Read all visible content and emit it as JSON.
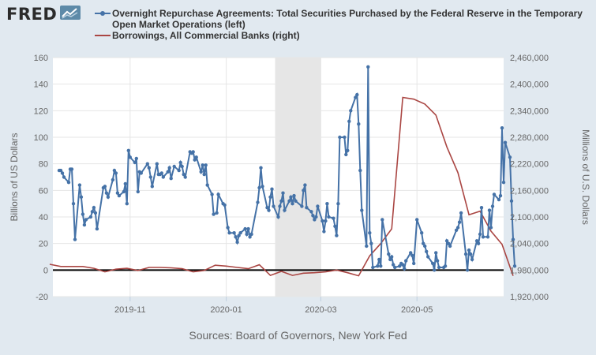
{
  "logo_text": "FRED",
  "logo_icon": "line-chart-icon",
  "source": "Sources: Board of Governors, New York Fed",
  "colors": {
    "background": "#e1e9f0",
    "plot_background": "#ffffff",
    "recession_band": "#e6e6e6",
    "series_left": "#4572a7",
    "series_right": "#aa4643"
  },
  "chart_data": {
    "type": "line",
    "x_type": "date",
    "xlim": [
      "2019-09-13",
      "2020-06-25"
    ],
    "x_ticks": [
      "2019-11",
      "2020-01",
      "2020-03",
      "2020-05"
    ],
    "ylabel_left": "Billions of US Dollars",
    "ylabel_right": "Millions of U.S. Dollars",
    "ylim_left": [
      -20,
      160
    ],
    "yticks_left": [
      "-20",
      "0",
      "20",
      "40",
      "60",
      "80",
      "100",
      "120",
      "140",
      "160"
    ],
    "ylim_right": [
      1920000,
      2460000
    ],
    "yticks_right": [
      "1,920,000",
      "1,980,000",
      "2,040,000",
      "2,100,000",
      "2,160,000",
      "2,220,000",
      "2,280,000",
      "2,340,000",
      "2,400,000",
      "2,460,000"
    ],
    "grid": true,
    "legend_position": "top",
    "shaded_period": [
      "2020-02-01",
      "2020-03-01"
    ],
    "series": [
      {
        "name": "Overnight Repurchase Agreements: Total Securities Purchased by the Federal Reserve in the Temporary Open Market Operations (left)",
        "axis": "left",
        "marker": "circle",
        "color": "#4572a7",
        "points": [
          [
            "2019-09-17",
            75
          ],
          [
            "2019-09-18",
            75
          ],
          [
            "2019-09-19",
            73
          ],
          [
            "2019-09-20",
            70
          ],
          [
            "2019-09-23",
            66
          ],
          [
            "2019-09-24",
            76
          ],
          [
            "2019-09-25",
            76
          ],
          [
            "2019-09-26",
            50
          ],
          [
            "2019-09-27",
            23
          ],
          [
            "2019-09-30",
            64
          ],
          [
            "2019-10-01",
            55
          ],
          [
            "2019-10-02",
            42
          ],
          [
            "2019-10-03",
            34
          ],
          [
            "2019-10-04",
            38
          ],
          [
            "2019-10-07",
            40
          ],
          [
            "2019-10-08",
            44
          ],
          [
            "2019-10-09",
            47
          ],
          [
            "2019-10-10",
            43
          ],
          [
            "2019-10-11",
            31
          ],
          [
            "2019-10-15",
            62
          ],
          [
            "2019-10-16",
            63
          ],
          [
            "2019-10-17",
            58
          ],
          [
            "2019-10-18",
            55
          ],
          [
            "2019-10-21",
            68
          ],
          [
            "2019-10-22",
            75
          ],
          [
            "2019-10-23",
            73
          ],
          [
            "2019-10-24",
            58
          ],
          [
            "2019-10-25",
            56
          ],
          [
            "2019-10-28",
            59
          ],
          [
            "2019-10-29",
            65
          ],
          [
            "2019-10-30",
            50
          ],
          [
            "2019-10-31",
            90
          ],
          [
            "2019-11-01",
            85
          ],
          [
            "2019-11-04",
            81
          ],
          [
            "2019-11-05",
            84
          ],
          [
            "2019-11-06",
            59
          ],
          [
            "2019-11-07",
            74
          ],
          [
            "2019-11-08",
            73
          ],
          [
            "2019-11-12",
            80
          ],
          [
            "2019-11-13",
            77
          ],
          [
            "2019-11-14",
            70
          ],
          [
            "2019-11-15",
            63
          ],
          [
            "2019-11-18",
            80
          ],
          [
            "2019-11-19",
            72
          ],
          [
            "2019-11-20",
            72
          ],
          [
            "2019-11-21",
            73
          ],
          [
            "2019-11-22",
            70
          ],
          [
            "2019-11-25",
            74
          ],
          [
            "2019-11-26",
            77
          ],
          [
            "2019-11-27",
            69
          ],
          [
            "2019-11-29",
            78
          ],
          [
            "2019-12-02",
            75
          ],
          [
            "2019-12-03",
            81
          ],
          [
            "2019-12-04",
            78
          ],
          [
            "2019-12-05",
            72
          ],
          [
            "2019-12-06",
            70
          ],
          [
            "2019-12-09",
            89
          ],
          [
            "2019-12-10",
            88
          ],
          [
            "2019-12-11",
            89
          ],
          [
            "2019-12-12",
            83
          ],
          [
            "2019-12-13",
            85
          ],
          [
            "2019-12-16",
            74
          ],
          [
            "2019-12-17",
            79
          ],
          [
            "2019-12-18",
            72
          ],
          [
            "2019-12-19",
            79
          ],
          [
            "2019-12-20",
            64
          ],
          [
            "2019-12-23",
            57
          ],
          [
            "2019-12-24",
            42
          ],
          [
            "2019-12-26",
            43
          ],
          [
            "2019-12-27",
            57
          ],
          [
            "2019-12-30",
            50
          ],
          [
            "2019-12-31",
            49
          ],
          [
            "2020-01-02",
            32
          ],
          [
            "2020-01-03",
            28
          ],
          [
            "2020-01-06",
            28
          ],
          [
            "2020-01-07",
            25
          ],
          [
            "2020-01-08",
            21
          ],
          [
            "2020-01-09",
            26
          ],
          [
            "2020-01-10",
            28
          ],
          [
            "2020-01-13",
            31
          ],
          [
            "2020-01-14",
            27
          ],
          [
            "2020-01-15",
            31
          ],
          [
            "2020-01-16",
            25
          ],
          [
            "2020-01-17",
            27
          ],
          [
            "2020-01-21",
            51
          ],
          [
            "2020-01-22",
            62
          ],
          [
            "2020-01-23",
            77
          ],
          [
            "2020-01-24",
            63
          ],
          [
            "2020-01-27",
            47
          ],
          [
            "2020-01-28",
            45
          ],
          [
            "2020-01-29",
            55
          ],
          [
            "2020-01-30",
            61
          ],
          [
            "2020-01-31",
            48
          ],
          [
            "2020-02-03",
            40
          ],
          [
            "2020-02-04",
            48
          ],
          [
            "2020-02-05",
            52
          ],
          [
            "2020-02-06",
            58
          ],
          [
            "2020-02-07",
            45
          ],
          [
            "2020-02-10",
            52
          ],
          [
            "2020-02-11",
            55
          ],
          [
            "2020-02-12",
            50
          ],
          [
            "2020-02-13",
            56
          ],
          [
            "2020-02-14",
            52
          ],
          [
            "2020-02-18",
            48
          ],
          [
            "2020-02-19",
            60
          ],
          [
            "2020-02-20",
            64
          ],
          [
            "2020-02-21",
            47
          ],
          [
            "2020-02-24",
            44
          ],
          [
            "2020-02-25",
            41
          ],
          [
            "2020-02-26",
            38
          ],
          [
            "2020-02-27",
            40
          ],
          [
            "2020-02-28",
            48
          ],
          [
            "2020-03-02",
            37
          ],
          [
            "2020-03-03",
            29
          ],
          [
            "2020-03-04",
            37
          ],
          [
            "2020-03-05",
            50
          ],
          [
            "2020-03-06",
            40
          ],
          [
            "2020-03-09",
            39
          ],
          [
            "2020-03-10",
            33
          ],
          [
            "2020-03-11",
            26
          ],
          [
            "2020-03-12",
            50
          ],
          [
            "2020-03-13",
            100
          ],
          [
            "2020-03-16",
            100
          ],
          [
            "2020-03-17",
            87
          ],
          [
            "2020-03-18",
            90
          ],
          [
            "2020-03-19",
            112
          ],
          [
            "2020-03-20",
            120
          ],
          [
            "2020-03-23",
            130
          ],
          [
            "2020-03-24",
            132
          ],
          [
            "2020-03-25",
            110
          ],
          [
            "2020-03-26",
            75
          ],
          [
            "2020-03-27",
            45
          ],
          [
            "2020-03-30",
            18
          ],
          [
            "2020-03-31",
            153
          ],
          [
            "2020-04-01",
            28
          ],
          [
            "2020-04-02",
            20
          ],
          [
            "2020-04-03",
            2
          ],
          [
            "2020-04-06",
            3
          ],
          [
            "2020-04-07",
            8
          ],
          [
            "2020-04-08",
            3
          ],
          [
            "2020-04-09",
            38
          ],
          [
            "2020-04-13",
            12
          ],
          [
            "2020-04-14",
            8
          ],
          [
            "2020-04-15",
            10
          ],
          [
            "2020-04-16",
            4
          ],
          [
            "2020-04-17",
            2
          ],
          [
            "2020-04-20",
            3
          ],
          [
            "2020-04-21",
            5
          ],
          [
            "2020-04-22",
            4
          ],
          [
            "2020-04-23",
            1
          ],
          [
            "2020-04-24",
            7
          ],
          [
            "2020-04-27",
            13
          ],
          [
            "2020-04-28",
            11
          ],
          [
            "2020-04-29",
            5
          ],
          [
            "2020-05-01",
            38
          ],
          [
            "2020-05-04",
            28
          ],
          [
            "2020-05-05",
            20
          ],
          [
            "2020-05-06",
            18
          ],
          [
            "2020-05-07",
            14
          ],
          [
            "2020-05-08",
            10
          ],
          [
            "2020-05-11",
            5
          ],
          [
            "2020-05-12",
            0
          ],
          [
            "2020-05-13",
            13
          ],
          [
            "2020-05-14",
            7
          ],
          [
            "2020-05-15",
            2
          ],
          [
            "2020-05-18",
            2
          ],
          [
            "2020-05-19",
            3
          ],
          [
            "2020-05-20",
            22
          ],
          [
            "2020-05-21",
            20
          ],
          [
            "2020-05-22",
            18
          ],
          [
            "2020-05-26",
            30
          ],
          [
            "2020-05-27",
            32
          ],
          [
            "2020-05-28",
            36
          ],
          [
            "2020-05-29",
            43
          ],
          [
            "2020-06-01",
            12
          ],
          [
            "2020-06-02",
            0
          ],
          [
            "2020-06-03",
            15
          ],
          [
            "2020-06-04",
            12
          ],
          [
            "2020-06-05",
            8
          ],
          [
            "2020-06-08",
            22
          ],
          [
            "2020-06-09",
            20
          ],
          [
            "2020-06-10",
            27
          ],
          [
            "2020-06-11",
            47
          ],
          [
            "2020-06-12",
            25
          ],
          [
            "2020-06-15",
            25
          ],
          [
            "2020-06-16",
            45
          ],
          [
            "2020-06-17",
            32
          ],
          [
            "2020-06-18",
            48
          ],
          [
            "2020-06-19",
            57
          ],
          [
            "2020-06-22",
            53
          ],
          [
            "2020-06-23",
            56
          ],
          [
            "2020-06-24",
            107
          ],
          [
            "2020-06-25",
            66
          ],
          [
            "2020-06-26",
            96
          ],
          [
            "2020-06-29",
            85
          ],
          [
            "2020-06-30",
            52
          ],
          [
            "2020-07-01",
            23
          ],
          [
            "2020-07-02",
            3
          ]
        ]
      },
      {
        "name": "Borrowings, All Commercial Banks (right)",
        "axis": "right",
        "marker": "none",
        "color": "#aa4643",
        "points": [
          [
            "2019-09-11",
            1993000
          ],
          [
            "2019-09-18",
            1988000
          ],
          [
            "2019-09-25",
            1988000
          ],
          [
            "2019-10-02",
            1988000
          ],
          [
            "2019-10-09",
            1984000
          ],
          [
            "2019-10-16",
            1976000
          ],
          [
            "2019-10-23",
            1982000
          ],
          [
            "2019-10-30",
            1984000
          ],
          [
            "2019-11-06",
            1979000
          ],
          [
            "2019-11-13",
            1986000
          ],
          [
            "2019-11-20",
            1986000
          ],
          [
            "2019-11-27",
            1985000
          ],
          [
            "2019-12-04",
            1983000
          ],
          [
            "2019-12-11",
            1976000
          ],
          [
            "2019-12-18",
            1979000
          ],
          [
            "2019-12-25",
            1991000
          ],
          [
            "2020-01-01",
            1989000
          ],
          [
            "2020-01-08",
            1986000
          ],
          [
            "2020-01-15",
            1983000
          ],
          [
            "2020-01-22",
            1992000
          ],
          [
            "2020-01-29",
            1968000
          ],
          [
            "2020-02-05",
            1977000
          ],
          [
            "2020-02-12",
            1968000
          ],
          [
            "2020-02-19",
            1973000
          ],
          [
            "2020-02-26",
            1974000
          ],
          [
            "2020-03-04",
            1976000
          ],
          [
            "2020-03-11",
            1980000
          ],
          [
            "2020-03-18",
            1974000
          ],
          [
            "2020-03-25",
            1967000
          ],
          [
            "2020-04-01",
            2012000
          ],
          [
            "2020-04-08",
            2040000
          ],
          [
            "2020-04-15",
            2073000
          ],
          [
            "2020-04-22",
            2370000
          ],
          [
            "2020-04-29",
            2366000
          ],
          [
            "2020-05-06",
            2355000
          ],
          [
            "2020-05-13",
            2330000
          ],
          [
            "2020-05-20",
            2258000
          ],
          [
            "2020-05-27",
            2200000
          ],
          [
            "2020-06-03",
            2105000
          ],
          [
            "2020-06-10",
            2113000
          ],
          [
            "2020-06-17",
            2068000
          ],
          [
            "2020-06-24",
            2038000
          ],
          [
            "2020-07-01",
            1967000
          ]
        ]
      }
    ]
  }
}
